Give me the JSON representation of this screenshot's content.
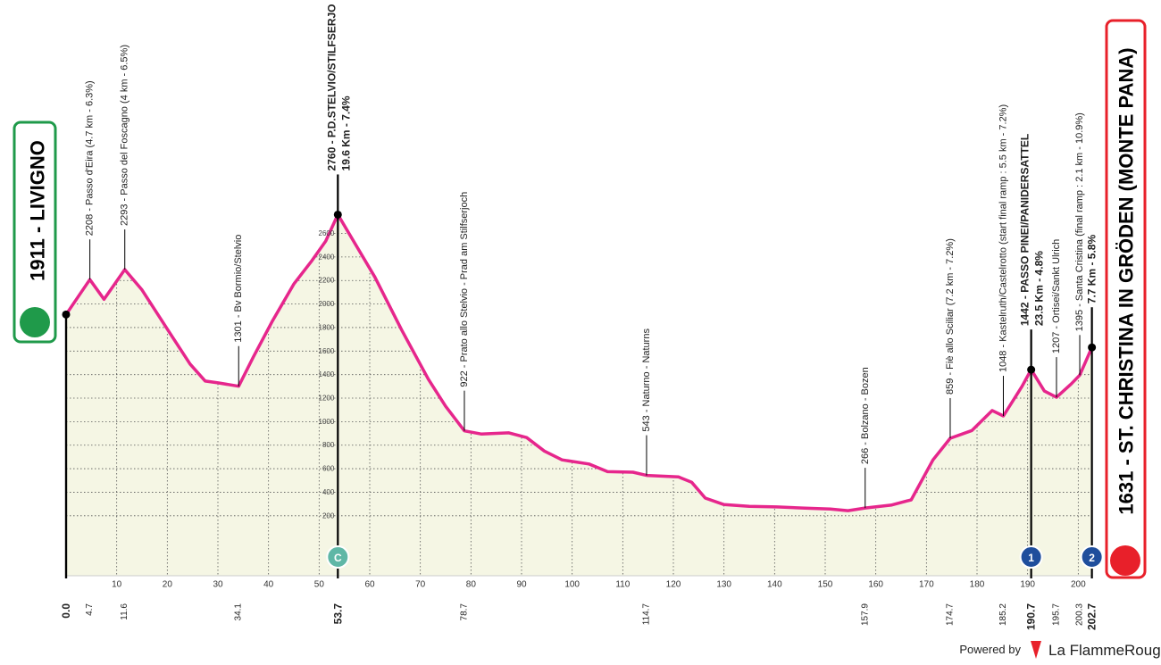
{
  "chart_data": {
    "type": "area",
    "x": [
      0,
      4.7,
      7.5,
      11.6,
      15,
      20.4,
      24.5,
      27.5,
      30,
      34.1,
      37,
      40.7,
      45,
      48.6,
      51.3,
      53.7,
      56.6,
      61,
      66.3,
      71.6,
      75,
      78.7,
      82,
      87.5,
      91,
      94.5,
      98,
      103.3,
      107,
      112,
      114.7,
      121,
      123.6,
      126.3,
      130,
      135,
      140.4,
      146,
      151,
      154.5,
      157.9,
      163,
      167,
      171.3,
      174.7,
      179,
      183,
      185.2,
      188.9,
      190.7,
      193.3,
      195.7,
      198.6,
      200.3,
      202.7
    ],
    "values": [
      1911,
      2208,
      2040,
      2293,
      2120,
      1760,
      1490,
      1345,
      1330,
      1301,
      1550,
      1850,
      2170,
      2370,
      2535,
      2760,
      2550,
      2230,
      1780,
      1360,
      1130,
      922,
      895,
      905,
      865,
      750,
      675,
      640,
      575,
      570,
      543,
      530,
      485,
      350,
      295,
      280,
      275,
      265,
      258,
      243,
      266,
      290,
      335,
      675,
      859,
      925,
      1095,
      1048,
      1300,
      1442,
      1260,
      1207,
      1320,
      1395,
      1631
    ],
    "color": "#e6268c",
    "fill": "#f5f6e4",
    "xlim": [
      0,
      207
    ],
    "ylim": [
      -310,
      2900
    ],
    "xticks": [
      10,
      20,
      30,
      40,
      50,
      60,
      70,
      80,
      90,
      100,
      110,
      120,
      130,
      140,
      150,
      160,
      170,
      180,
      190,
      200
    ],
    "yticks": [
      200,
      400,
      600,
      800,
      1000,
      1200,
      1400,
      1600,
      1800,
      2000,
      2200,
      2400,
      2600
    ],
    "grid": true,
    "distance_marks": [
      {
        "value": 0,
        "label": "0.0"
      },
      4.7,
      11.6,
      34.1,
      {
        "value": 53.7,
        "label": "53.7"
      },
      78.7,
      114.7,
      157.9,
      174.7,
      185.2,
      {
        "value": 190.7,
        "label": "190.7"
      },
      195.7,
      200.3,
      {
        "value": 202.7,
        "label": "202.7"
      }
    ],
    "bold_marks": [
      0,
      53.7,
      190.7,
      202.7
    ],
    "waypoints": [
      {
        "km": 4.7,
        "label": "2208 - Passo d'Eira (4.7 km - 6.3%)"
      },
      {
        "km": 11.6,
        "label": "2293 - Passo del Foscagno (4 km - 6.5%)"
      },
      {
        "km": 34.1,
        "label": "1301 - Bv Bormio/Stelvio"
      },
      {
        "km": 53.7,
        "label": "2760 - P.D.STELVIO/STILFSERJO",
        "sub": "19.6 Km - 7.4%"
      },
      {
        "km": 78.7,
        "label": "922 - Prato allo Stelvio - Prad am Stilfserjoch"
      },
      {
        "km": 114.7,
        "label": "543 - Naturno - Naturns"
      },
      {
        "km": 157.9,
        "label": "266 - Bolzano - Bozen"
      },
      {
        "km": 174.7,
        "label": "859 - Fiè allo Sciliar (7.2 km - 7.2%)"
      },
      {
        "km": 185.2,
        "label": "1048 - Kastelruth/Castelrotto (start final ramp : 5.5 km - 7.2%)"
      },
      {
        "km": 190.7,
        "label": "1442 - PASSO PINEI/PANIDERSATTEL",
        "sub": "23.5 Km - 4.8%"
      },
      {
        "km": 195.7,
        "label": "1207 - Ortisei/Sankt Ulrich"
      },
      {
        "km": 200.3,
        "label": "1395 - Santa Cristina (final ramp : 2.1 km - 10.9%)"
      },
      {
        "km": 202.7,
        "label": "7.7 Km - 5.8%"
      }
    ],
    "climbs": [
      {
        "km": 53.7,
        "badge": "C"
      },
      {
        "km": 190.7,
        "badge": "1"
      },
      {
        "km": 202.7,
        "badge": "2"
      }
    ],
    "start": "1911 - LIVIGNO",
    "finish": "1631 - ST. CHRISTINA IN GRÖDEN (MONTE PANA)"
  },
  "footer": {
    "powered": "Powered by",
    "brand": "La FlammeRouge"
  }
}
